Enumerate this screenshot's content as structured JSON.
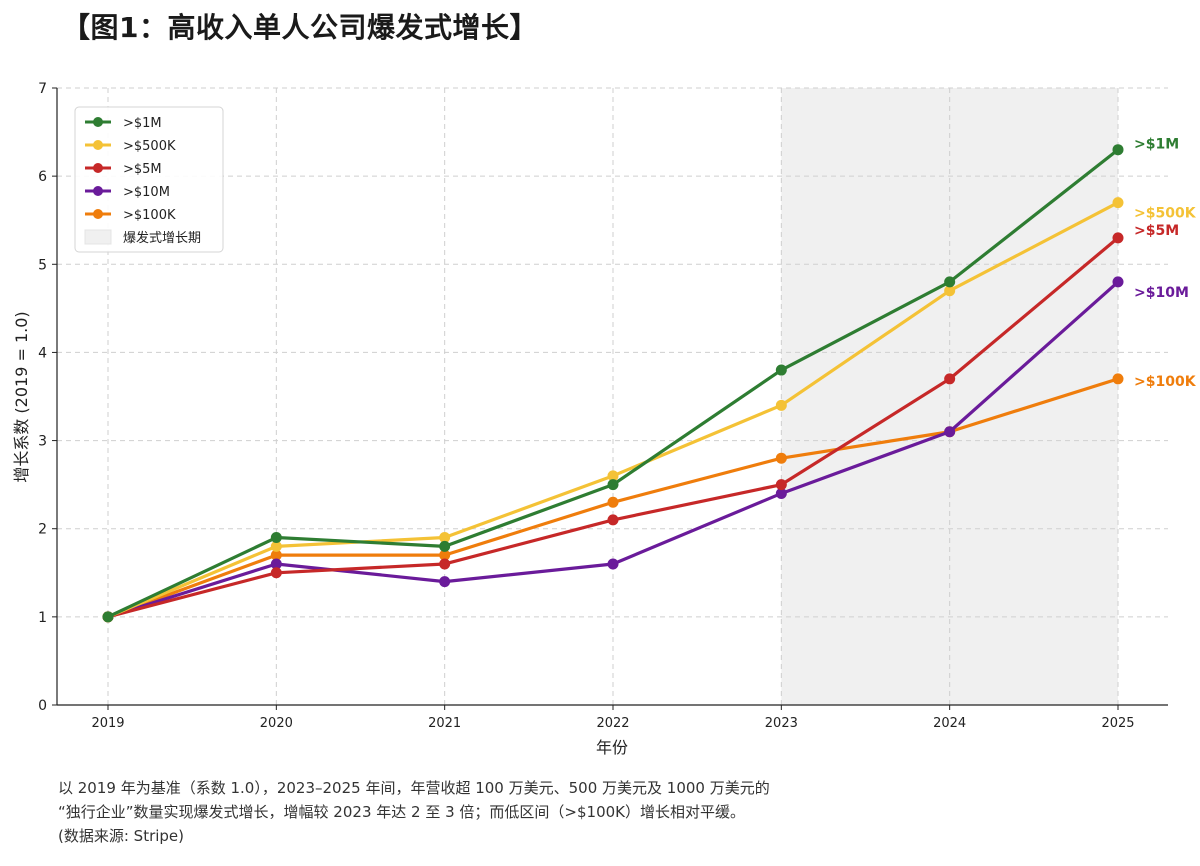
{
  "title": "【图1：高收入单人公司爆发式增长】",
  "caption": {
    "line1": "以 2019 年为基准（系数 1.0），2023–2025 年间，年营收超 100 万美元、500 万美元及 1000 万美元的",
    "line2": "“独行企业”数量实现爆发式增长，增幅较 2023 年达 2 至 3 倍；而低区间（>$100K）增长相对平缓。",
    "line3": "(数据来源: Stripe)"
  },
  "chart_data": {
    "type": "line",
    "title": "",
    "xlabel": "年份",
    "ylabel": "增长系数 (2019 = 1.0)",
    "x": [
      2019,
      2020,
      2021,
      2022,
      2023,
      2024,
      2025
    ],
    "ylim": [
      0,
      7
    ],
    "yticks": [
      0,
      1,
      2,
      3,
      4,
      5,
      6,
      7
    ],
    "grid": true,
    "legend_position": "top-left",
    "shaded_region": {
      "label": "爆发式增长期",
      "x_start": 2023,
      "x_end": 2025,
      "color": "#f0f0f0"
    },
    "series": [
      {
        "name": ">$1M",
        "color": "#2e7d32",
        "values": [
          1.0,
          1.9,
          1.8,
          2.5,
          3.8,
          4.8,
          6.3
        ]
      },
      {
        "name": ">$500K",
        "color": "#f4c236",
        "values": [
          1.0,
          1.8,
          1.9,
          2.6,
          3.4,
          4.7,
          5.7
        ]
      },
      {
        "name": ">$5M",
        "color": "#c62828",
        "values": [
          1.0,
          1.5,
          1.6,
          2.1,
          2.5,
          3.7,
          5.3
        ]
      },
      {
        "name": ">$10M",
        "color": "#6a1b9a",
        "values": [
          1.0,
          1.6,
          1.4,
          1.6,
          2.4,
          3.1,
          4.8
        ]
      },
      {
        "name": ">$100K",
        "color": "#ef7d0c",
        "values": [
          1.0,
          1.7,
          1.7,
          2.3,
          2.8,
          3.1,
          3.7
        ]
      }
    ],
    "end_labels": [
      ">$1M",
      ">$500K",
      ">$5M",
      ">$10M",
      ">$100K"
    ]
  }
}
